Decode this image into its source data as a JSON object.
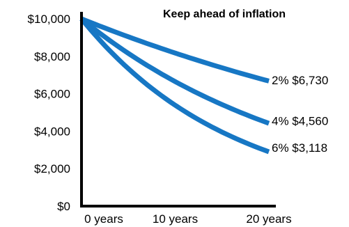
{
  "chart_data": {
    "type": "line",
    "title": "Keep ahead of inflation",
    "xlabel": "",
    "ylabel": "",
    "x": [
      0,
      10,
      20
    ],
    "x_tick_labels": [
      "0 years",
      "10 years",
      "20 years"
    ],
    "xlim": [
      0,
      20
    ],
    "y_ticks": [
      0,
      2000,
      4000,
      6000,
      8000,
      10000
    ],
    "y_tick_labels": [
      "$0",
      "$2,000",
      "$4,000",
      "$6,000",
      "$8,000",
      "$10,000"
    ],
    "ylim": [
      0,
      10000
    ],
    "grid": false,
    "series": [
      {
        "rate": 0.02,
        "end_label": "2% $6,730",
        "values": [
          10000,
          8171,
          6730
        ]
      },
      {
        "rate": 0.04,
        "end_label": "4% $4,560",
        "values": [
          10000,
          6648,
          4560
        ]
      },
      {
        "rate": 0.06,
        "end_label": "6% $3,118",
        "values": [
          10000,
          5386,
          3118
        ]
      }
    ],
    "line_color": "#1777c4",
    "axis_color": "#000000"
  }
}
